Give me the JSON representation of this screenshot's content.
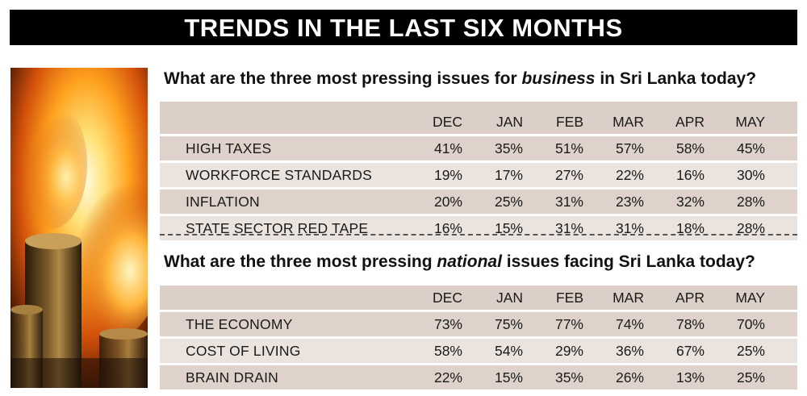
{
  "banner_title": "TRENDS IN THE LAST SIX MONTHS",
  "colors": {
    "banner_bg": "#000000",
    "table_header": "#dccfc8",
    "row_dark": "#ded2cb",
    "row_light": "#ebe3de"
  },
  "photo": {
    "description_icon": "fire-coins-image"
  },
  "business": {
    "question_pre": "What are the three most pressing issues for ",
    "question_em": "business",
    "question_post": " in Sri Lanka today?",
    "months": [
      "DEC",
      "JAN",
      "FEB",
      "MAR",
      "APR",
      "MAY"
    ],
    "rows": [
      {
        "label": "HIGH TAXES",
        "values": [
          "41%",
          "35%",
          "51%",
          "57%",
          "58%",
          "45%"
        ]
      },
      {
        "label": "WORKFORCE STANDARDS",
        "values": [
          "19%",
          "17%",
          "27%",
          "22%",
          "16%",
          "30%"
        ]
      },
      {
        "label": "INFLATION",
        "values": [
          "20%",
          "25%",
          "31%",
          "23%",
          "32%",
          "28%"
        ]
      },
      {
        "label": "STATE SECTOR RED TAPE",
        "values": [
          "16%",
          "15%",
          "31%",
          "31%",
          "18%",
          "28%"
        ]
      }
    ]
  },
  "national": {
    "question_pre": "What are the three most pressing ",
    "question_em": "national",
    "question_post": " issues facing Sri Lanka today?",
    "months": [
      "DEC",
      "JAN",
      "FEB",
      "MAR",
      "APR",
      "MAY"
    ],
    "rows": [
      {
        "label": "THE ECONOMY",
        "values": [
          "73%",
          "75%",
          "77%",
          "74%",
          "78%",
          "70%"
        ]
      },
      {
        "label": "COST OF LIVING",
        "values": [
          "58%",
          "54%",
          "29%",
          "36%",
          "67%",
          "25%"
        ]
      },
      {
        "label": "BRAIN DRAIN",
        "values": [
          "22%",
          "15%",
          "35%",
          "26%",
          "13%",
          "25%"
        ]
      }
    ]
  }
}
